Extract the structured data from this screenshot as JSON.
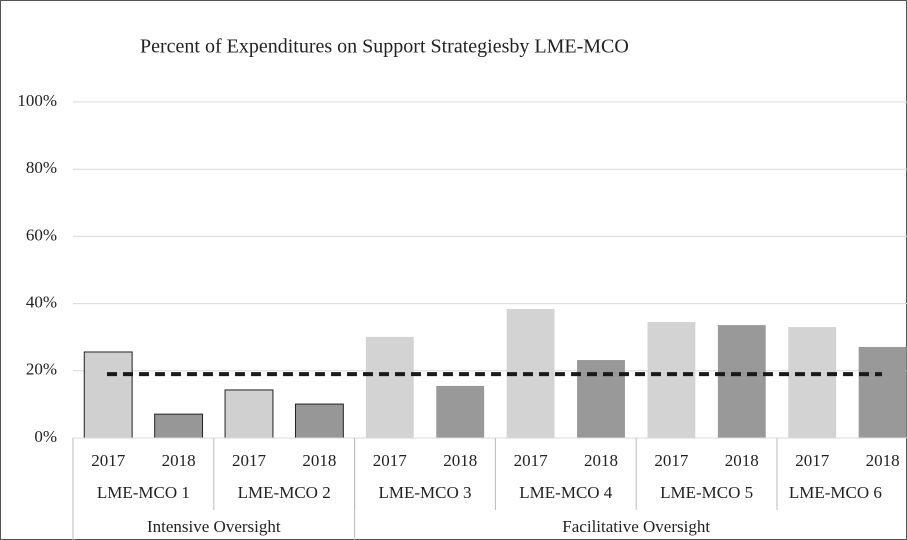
{
  "chart_data": {
    "type": "bar",
    "title": "Percent of Expenditures on Support Strategiesby LME-MCO",
    "categories": [
      "2017",
      "2018",
      "2017",
      "2018",
      "2017",
      "2018",
      "2017",
      "2018",
      "2017",
      "2018",
      "2017",
      "2018"
    ],
    "groups": [
      {
        "label": "LME-MCO 1",
        "span": 2
      },
      {
        "label": "LME-MCO 2",
        "span": 2
      },
      {
        "label": "LME-MCO 3",
        "span": 2
      },
      {
        "label": "LME-MCO 4",
        "span": 2
      },
      {
        "label": "LME-MCO 5",
        "span": 2
      },
      {
        "label": "LME-MCO 6",
        "span": 2
      }
    ],
    "supergroups": [
      {
        "label": "Intensive Oversight",
        "span": 4
      },
      {
        "label": "Facilitative Oversight",
        "span": 8
      }
    ],
    "values": [
      25.6,
      7.1,
      14.3,
      10.1,
      30.1,
      15.5,
      38.4,
      23.2,
      34.5,
      33.6,
      33.0,
      27.1
    ],
    "colors": [
      "#d0d0d0",
      "#979797",
      "#d0d0d0",
      "#979797",
      "#d3d3d3",
      "#999999",
      "#d3d3d3",
      "#999999",
      "#d3d3d3",
      "#999999",
      "#d3d3d3",
      "#999999"
    ],
    "edgecolors": [
      "#222222",
      "#222222",
      "#222222",
      "#222222",
      null,
      null,
      null,
      null,
      null,
      null,
      null,
      null
    ],
    "reference_line": {
      "value": 19,
      "style": "dashed",
      "color": "#1a1a1a"
    },
    "ylim": [
      0,
      100
    ],
    "yticks": [
      {
        "value": 0,
        "label": "0%"
      },
      {
        "value": 20,
        "label": "20%"
      },
      {
        "value": 40,
        "label": "40%"
      },
      {
        "value": 60,
        "label": "60%"
      },
      {
        "value": 80,
        "label": "80%"
      },
      {
        "value": 100,
        "label": "100%"
      }
    ],
    "grid": true
  }
}
